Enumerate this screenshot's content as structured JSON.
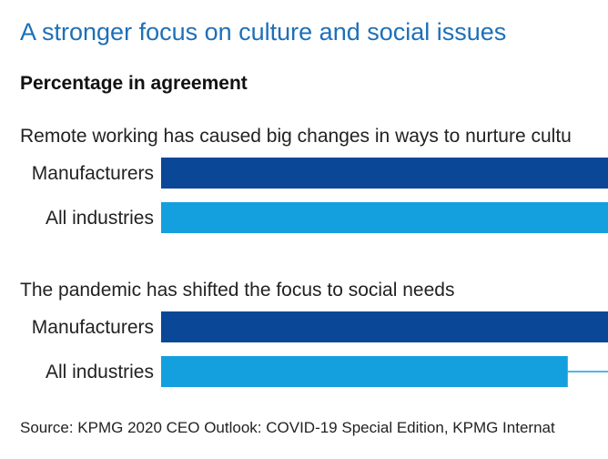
{
  "title": "A stronger focus on culture and social issues",
  "subtitle": "Percentage in agreement",
  "source": "Source: KPMG 2020  CEO Outlook: COVID-19 Special Edition, KPMG Internat",
  "chart_data": {
    "type": "bar",
    "orientation": "horizontal",
    "legend": "none",
    "grid": false,
    "groups": [
      {
        "question": "Remote working has caused big changes in ways to nurture cultu",
        "bars": [
          {
            "category": "Manufacturers",
            "value": 1.0,
            "color": "#0a4797"
          },
          {
            "category": "All industries",
            "value": 1.0,
            "color": "#14a0de"
          }
        ]
      },
      {
        "question": "The pandemic has shifted the focus to social needs",
        "bars": [
          {
            "category": "Manufacturers",
            "value": 1.0,
            "color": "#0a4797"
          },
          {
            "category": "All industries",
            "value": 0.91,
            "color": "#14a0de"
          }
        ]
      }
    ]
  }
}
